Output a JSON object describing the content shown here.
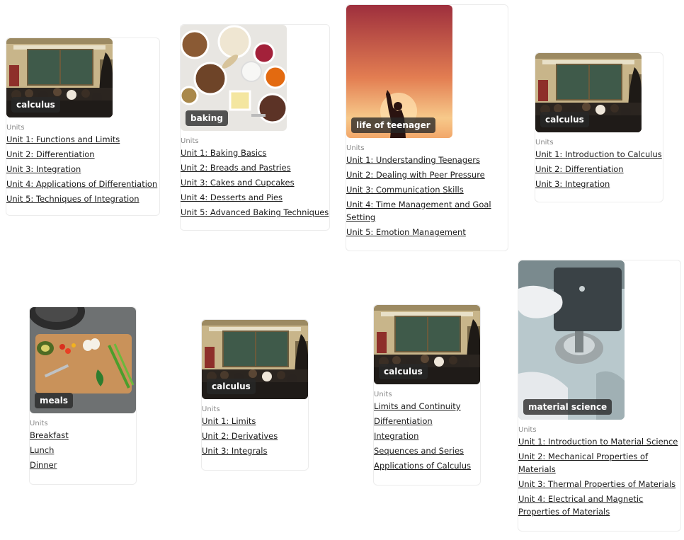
{
  "common": {
    "units_label": "Units"
  },
  "cards": [
    {
      "tag": "calculus",
      "image": "classroom-image",
      "units": [
        "Unit 1: Functions and Limits",
        "Unit 2: Differentiation",
        "Unit 3: Integration",
        "Unit 4: Applications of Differentiation",
        "Unit 5: Techniques of Integration"
      ]
    },
    {
      "tag": "baking",
      "image": "baking-ingredients-image",
      "units": [
        "Unit 1: Baking Basics",
        "Unit 2: Breads and Pastries",
        "Unit 3: Cakes and Cupcakes",
        "Unit 4: Desserts and Pies",
        "Unit 5: Advanced Baking Techniques"
      ]
    },
    {
      "tag": "life of teenager",
      "image": "sunset-silhouette-image",
      "units": [
        "Unit 1: Understanding Teenagers",
        "Unit 2: Dealing with Peer Pressure",
        "Unit 3: Communication Skills",
        "Unit 4: Time Management and Goal Setting",
        "Unit 5: Emotion Management"
      ]
    },
    {
      "tag": "calculus",
      "image": "classroom-image",
      "units": [
        "Unit 1: Introduction to Calculus",
        "Unit 2: Differentiation",
        "Unit 3: Integration"
      ]
    },
    {
      "tag": "meals",
      "image": "cutting-board-vegetables-image",
      "units": [
        "Breakfast",
        "Lunch",
        "Dinner"
      ]
    },
    {
      "tag": "calculus",
      "image": "classroom-image",
      "units": [
        "Unit 1: Limits",
        "Unit 2: Derivatives",
        "Unit 3: Integrals"
      ]
    },
    {
      "tag": "calculus",
      "image": "classroom-image",
      "units": [
        "Limits and Continuity",
        "Differentiation",
        "Integration",
        "Sequences and Series",
        "Applications of Calculus"
      ]
    },
    {
      "tag": "material science",
      "image": "lab-equipment-image",
      "units": [
        "Unit 1: Introduction to Material Science",
        "Unit 2: Mechanical Properties of Materials",
        "Unit 3: Thermal Properties of Materials",
        "Unit 4: Electrical and Magnetic Properties of Materials"
      ]
    }
  ]
}
